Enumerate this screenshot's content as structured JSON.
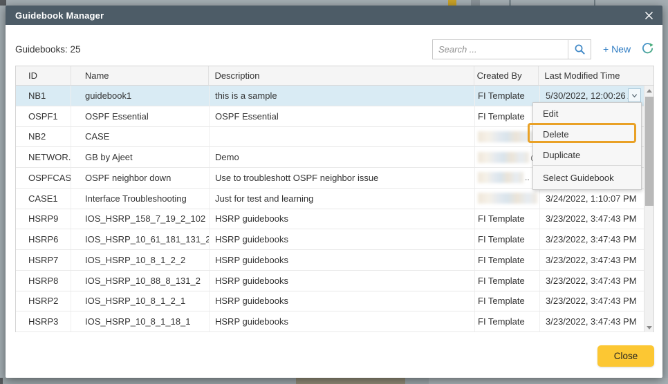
{
  "window": {
    "title": "Guidebook Manager",
    "close_icon": "x-icon"
  },
  "toolbar": {
    "count_label": "Guidebooks: 25",
    "search_placeholder": "Search ...",
    "search_value": "",
    "new_label": "+ New",
    "refresh_icon": "refresh-sync-icon",
    "search_icon": "magnifier-icon"
  },
  "table": {
    "columns": [
      "ID",
      "Name",
      "Description",
      "Created By",
      "Last Modified Time"
    ],
    "rows": [
      {
        "id": "NB1",
        "name": "guidebook1",
        "description": "this is a sample",
        "created_by": "FI Template",
        "last_modified": "5/30/2022, 12:00:26 A",
        "selected": true,
        "has_dropdown": true,
        "redacted": false
      },
      {
        "id": "OSPF1",
        "name": "OSPF Essential",
        "description": "OSPF Essential",
        "created_by": "FI Template",
        "last_modified": "",
        "redacted": false
      },
      {
        "id": "NB2",
        "name": "CASE",
        "description": "",
        "created_by": "",
        "last_modified": "",
        "redacted": true,
        "redacted_width": 86,
        "redacted_suffix": "."
      },
      {
        "id": "NETWOR...",
        "name": "GB by Ajeet",
        "description": "Demo",
        "created_by": "",
        "last_modified": "",
        "redacted": true,
        "redacted_width": 74,
        "redacted_suffix": "@"
      },
      {
        "id": "OSPFCAS...",
        "name": "OSPF neighbor down",
        "description": "Use to troubleshott OSPF neighbor issue",
        "created_by": "",
        "last_modified": "",
        "redacted": true,
        "redacted_width": 66,
        "redacted_suffix": ".."
      },
      {
        "id": "CASE1",
        "name": "Interface Troubleshooting",
        "description": "Just for test and learning",
        "created_by": "",
        "last_modified": "3/24/2022, 1:10:07 PM",
        "redacted": true,
        "redacted_width": 86,
        "redacted_suffix": ""
      },
      {
        "id": "HSRP9",
        "name": "IOS_HSRP_158_7_19_2_102",
        "description": "HSRP guidebooks",
        "created_by": "FI Template",
        "last_modified": "3/23/2022, 3:47:43 PM",
        "redacted": false
      },
      {
        "id": "HSRP6",
        "name": "IOS_HSRP_10_61_181_131_2",
        "description": "HSRP guidebooks",
        "created_by": "FI Template",
        "last_modified": "3/23/2022, 3:47:43 PM",
        "redacted": false
      },
      {
        "id": "HSRP7",
        "name": "IOS_HSRP_10_8_1_2_2",
        "description": "HSRP guidebooks",
        "created_by": "FI Template",
        "last_modified": "3/23/2022, 3:47:43 PM",
        "redacted": false
      },
      {
        "id": "HSRP8",
        "name": "IOS_HSRP_10_88_8_131_2",
        "description": "HSRP guidebooks",
        "created_by": "FI Template",
        "last_modified": "3/23/2022, 3:47:43 PM",
        "redacted": false
      },
      {
        "id": "HSRP2",
        "name": "IOS_HSRP_10_8_1_2_1",
        "description": "HSRP guidebooks",
        "created_by": "FI Template",
        "last_modified": "3/23/2022, 3:47:43 PM",
        "redacted": false
      },
      {
        "id": "HSRP3",
        "name": "IOS_HSRP_10_8_1_18_1",
        "description": "HSRP guidebooks",
        "created_by": "FI Template",
        "last_modified": "3/23/2022, 3:47:43 PM",
        "redacted": false
      }
    ]
  },
  "menu": {
    "items": [
      "Edit",
      "Delete",
      "Duplicate",
      "Select Guidebook"
    ],
    "highlighted_item": "Delete"
  },
  "footer": {
    "close_label": "Close"
  },
  "colors": {
    "titlebar": "#4d5c67",
    "accent_orange": "#e9a126",
    "close_button": "#fcc733",
    "selected_row": "#d9ebf4",
    "link_blue": "#2e7cc3"
  }
}
